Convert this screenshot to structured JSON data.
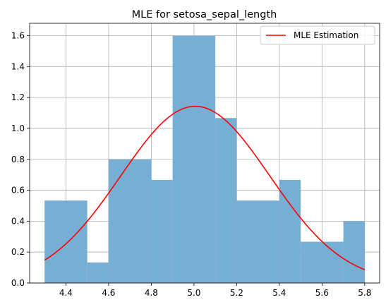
{
  "chart_data": {
    "type": "bar",
    "title": "MLE for setosa_sepal_length",
    "xlabel": "",
    "ylabel": "",
    "xlim": [
      4.23,
      5.87
    ],
    "ylim": [
      0,
      1.68
    ],
    "x_ticks": [
      "4.4",
      "4.6",
      "4.8",
      "5.0",
      "5.2",
      "5.4",
      "5.6",
      "5.8"
    ],
    "y_ticks": [
      "0.0",
      "0.2",
      "0.4",
      "0.6",
      "0.8",
      "1.0",
      "1.2",
      "1.4",
      "1.6"
    ],
    "grid": true,
    "legend_position": "top-right",
    "histogram": {
      "color": "#77aed3",
      "bins": [
        {
          "x0": 4.3,
          "x1": 4.5,
          "density": 0.533
        },
        {
          "x0": 4.5,
          "x1": 4.6,
          "density": 0.133
        },
        {
          "x0": 4.6,
          "x1": 4.8,
          "density": 0.8
        },
        {
          "x0": 4.8,
          "x1": 4.9,
          "density": 0.667
        },
        {
          "x0": 4.9,
          "x1": 5.1,
          "density": 1.6
        },
        {
          "x0": 5.1,
          "x1": 5.2,
          "density": 1.067
        },
        {
          "x0": 5.2,
          "x1": 5.4,
          "density": 0.533
        },
        {
          "x0": 5.4,
          "x1": 5.5,
          "density": 0.667
        },
        {
          "x0": 5.5,
          "x1": 5.7,
          "density": 0.267
        },
        {
          "x0": 5.7,
          "x1": 5.8,
          "density": 0.4
        }
      ]
    },
    "series": [
      {
        "name": "MLE Estimation",
        "type": "line",
        "color": "#ff0000",
        "distribution": "normal",
        "mean": 5.006,
        "std": 0.349,
        "x_range": [
          4.3,
          5.8
        ]
      }
    ]
  }
}
